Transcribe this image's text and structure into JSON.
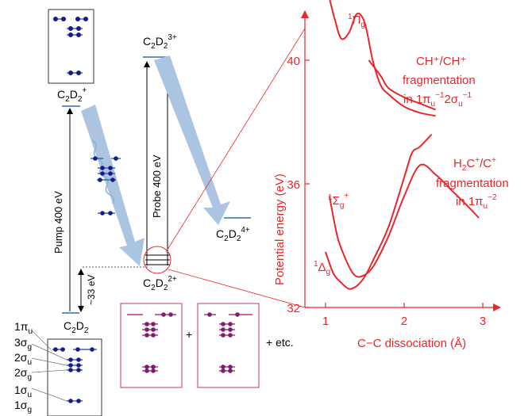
{
  "colors": {
    "red": "#e8262b",
    "arrow_blue": "#aac4e2",
    "wavy_blue": "#8fb0d8",
    "level_blue": "#2d6db0",
    "electron_navy": "#1a1a8c",
    "electron_purple": "#7a1f6e",
    "level_magenta": "#c0307a"
  },
  "states": {
    "cation": {
      "main": "C",
      "sub1": "2",
      "mid": "D",
      "sub2": "2",
      "sup": "+"
    },
    "trication": {
      "main": "C",
      "sub1": "2",
      "mid": "D",
      "sub2": "2",
      "sup": "3+"
    },
    "tetracation": {
      "main": "C",
      "sub1": "2",
      "mid": "D",
      "sub2": "2",
      "sup": "4+"
    },
    "dication": {
      "main": "C",
      "sub1": "2",
      "mid": "D",
      "sub2": "2",
      "sup": "2+"
    },
    "neutral": {
      "main": "C",
      "sub1": "2",
      "mid": "D",
      "sub2": "2"
    }
  },
  "labels": {
    "pump": "Pump 400 eV",
    "probe": "Probe 400 eV",
    "energy_gap": "~33 eV",
    "plus": "+",
    "etc": "+ etc."
  },
  "orbitals": [
    {
      "base": "1π",
      "sub": "u"
    },
    {
      "base": "3σ",
      "sub": "g"
    },
    {
      "base": "2σ",
      "sub": "u"
    },
    {
      "base": "2σ",
      "sub": "g"
    },
    {
      "base": "1σ",
      "sub": "u"
    },
    {
      "base": "1σ",
      "sub": "g"
    }
  ],
  "plot": {
    "ylabel": "Potential energy (eV)",
    "xlabel": "C−C dissociation (Å)",
    "yticks": [
      "32",
      "36",
      "40"
    ],
    "xticks": [
      "1",
      "2",
      "3"
    ],
    "state_pi": {
      "base": "Π",
      "sup": "1",
      "sub": "g"
    },
    "state_sigma": {
      "base": "Σ",
      "sup": "1",
      "sub": "g",
      "sup2": "+"
    },
    "state_delta": {
      "base": "Δ",
      "sup": "1",
      "sub": "g"
    },
    "annot1": {
      "line1": "CH⁺/CH⁺",
      "line2": "fragmentation",
      "line3_a": "in 1π",
      "line3_sub1": "u",
      "line3_sup1": "−1",
      "line3_b": "2σ",
      "line3_sub2": "u",
      "line3_sup2": "−1"
    },
    "annot2": {
      "line1_a": "H",
      "line1_sub": "2",
      "line1_b": "C",
      "line1_sup1": "+",
      "line1_c": "/C",
      "line1_sup2": "+",
      "line2": "fragmentation",
      "line3_a": "in 1π",
      "line3_sub": "u",
      "line3_sup": "−2"
    }
  },
  "chart_data": {
    "type": "line",
    "xlabel": "C−C dissociation (Å)",
    "ylabel": "Potential energy (eV)",
    "xlim": [
      0.9,
      3.05
    ],
    "ylim": [
      32,
      42.5
    ],
    "xticks": [
      1,
      2,
      3
    ],
    "yticks": [
      32,
      36,
      40
    ],
    "grid": false,
    "series": [
      {
        "name": "1Πg",
        "x": [
          1.05,
          1.12,
          1.2,
          1.3,
          1.4,
          1.5,
          1.6,
          1.7,
          1.8,
          2.0,
          2.2,
          2.4
        ],
        "y": [
          42.0,
          41.3,
          40.7,
          40.9,
          41.5,
          41.2,
          40.0,
          39.2,
          38.9,
          38.5,
          38.3,
          38.2
        ]
      },
      {
        "name": "CH+/CH+ upper",
        "x": [
          1.55,
          1.7,
          1.8,
          2.0,
          2.2,
          2.4
        ],
        "y": [
          40.0,
          39.5,
          39.1,
          38.8,
          38.6,
          38.4
        ]
      },
      {
        "name": "1Σg+",
        "x": [
          1.05,
          1.15,
          1.25,
          1.35,
          1.45,
          1.6,
          1.8,
          2.0,
          2.2,
          2.4,
          2.6,
          2.8,
          2.95
        ],
        "y": [
          35.6,
          34.3,
          33.6,
          33.1,
          33.0,
          33.3,
          34.3,
          35.6,
          36.6,
          36.3,
          35.8,
          35.3,
          34.9
        ]
      },
      {
        "name": "1Δg",
        "x": [
          1.0,
          1.1,
          1.2,
          1.3,
          1.4,
          1.5,
          1.6,
          1.8,
          2.0,
          2.1,
          2.2,
          2.35
        ],
        "y": [
          33.8,
          33.1,
          32.8,
          32.6,
          32.7,
          33.0,
          33.5,
          34.6,
          36.2,
          37.0,
          37.2,
          37.6
        ]
      }
    ]
  }
}
